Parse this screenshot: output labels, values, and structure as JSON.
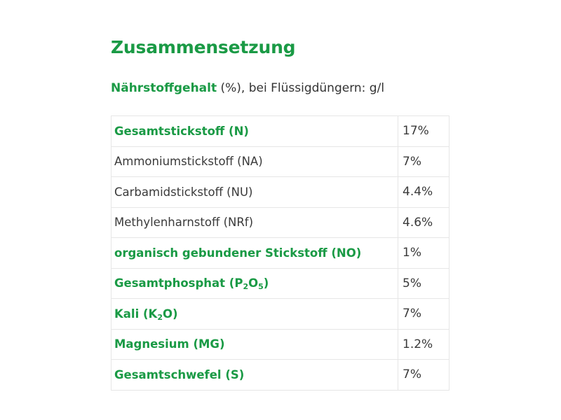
{
  "title": "Zusammensetzung",
  "subtitle": {
    "highlight": "Nährstoffgehalt",
    "rest": " (%), bei Flüssigdüngern: g/l"
  },
  "rows": [
    {
      "label": "Gesamtstickstoff (N)",
      "value": "17%",
      "bold": true
    },
    {
      "label": "Ammoniumstickstoff (NA)",
      "value": "7%",
      "bold": false
    },
    {
      "label": "Carbamidstickstoff (NU)",
      "value": "4.4%",
      "bold": false
    },
    {
      "label": "Methylenharnstoff (NRf)",
      "value": "4.6%",
      "bold": false
    },
    {
      "label": "organisch gebundener Stickstoff (NO)",
      "value": "1%",
      "bold": true
    },
    {
      "label": "Gesamtphosphat (",
      "sub1": "2",
      "mid": "O",
      "sub2": "5",
      "tail": ")",
      "pre": "P",
      "value": "5%",
      "bold": true
    },
    {
      "label": "Kali (K",
      "sub1": "2",
      "tail": "O)",
      "value": "7%",
      "bold": true
    },
    {
      "label": "Magnesium (MG)",
      "value": "1.2%",
      "bold": true
    },
    {
      "label": "Gesamtschwefel (S)",
      "value": "7%",
      "bold": true
    }
  ]
}
